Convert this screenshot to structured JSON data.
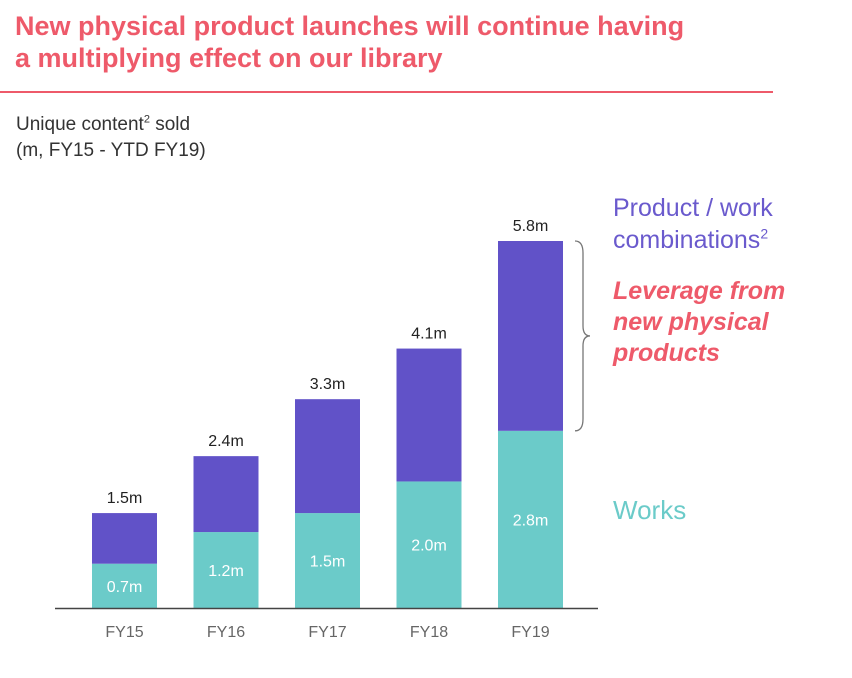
{
  "slide": {
    "title_line1": "New physical product launches will continue having",
    "title_line2": "a multiplying effect on our library",
    "subtitle_line1_pre": "Unique content",
    "subtitle_sup": "2",
    "subtitle_line1_post": " sold",
    "subtitle_line2": "(m, FY15 - YTD FY19)",
    "legend_combo_line1": "Product / work",
    "legend_combo_line2": "combinations",
    "legend_combo_sup": "2",
    "leverage_line1": "Leverage from",
    "leverage_line2": "new physical",
    "leverage_line3": "products",
    "legend_works": "Works"
  },
  "colors": {
    "accent": "#ee5a6a",
    "combinations": "#6152c8",
    "works": "#6bcbc9"
  },
  "chart_data": {
    "type": "bar",
    "stacked": true,
    "categories": [
      "FY15",
      "FY16",
      "FY17",
      "FY18",
      "FY19"
    ],
    "series": [
      {
        "name": "Works",
        "values": [
          0.7,
          1.2,
          1.5,
          2.0,
          2.8
        ],
        "labels": [
          "0.7m",
          "1.2m",
          "1.5m",
          "2.0m",
          "2.8m"
        ]
      },
      {
        "name": "Product / work combinations",
        "values": [
          0.8,
          1.2,
          1.8,
          2.1,
          3.0
        ]
      }
    ],
    "totals": [
      1.5,
      2.4,
      3.3,
      4.1,
      5.8
    ],
    "total_labels": [
      "1.5m",
      "2.4m",
      "3.3m",
      "4.1m",
      "5.8m"
    ],
    "unit": "m",
    "ylim": [
      0,
      5.8
    ]
  }
}
